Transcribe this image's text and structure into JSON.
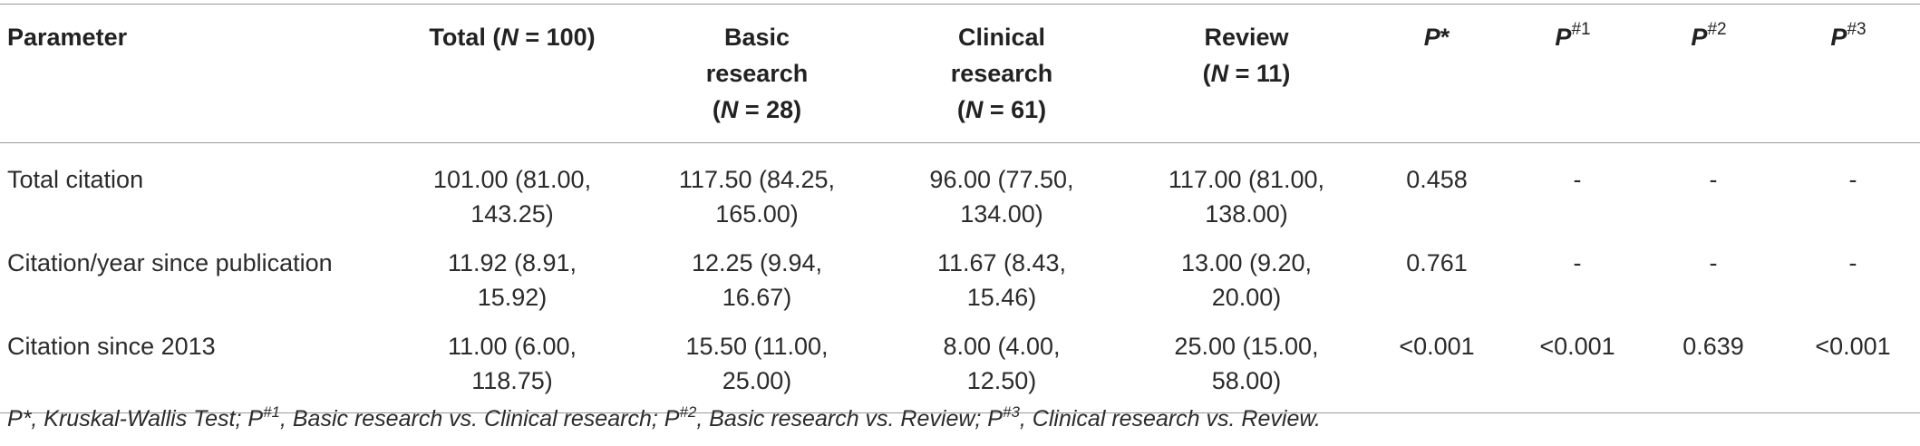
{
  "table": {
    "headers": {
      "parameter": "Parameter",
      "total": {
        "pre": "Total (",
        "n": "N",
        "post": " = 100)"
      },
      "basic": {
        "l1": "Basic",
        "l2": "research",
        "pre": "(",
        "n": "N",
        "post": " = 28)"
      },
      "clinical": {
        "l1": "Clinical",
        "l2": "research",
        "pre": "(",
        "n": "N",
        "post": " = 61)"
      },
      "review": {
        "l1": "Review",
        "pre": "(",
        "n": "N",
        "post": " = 11)"
      },
      "p": {
        "base": "P",
        "star": "*"
      },
      "p1": {
        "base": "P",
        "sup": "#1"
      },
      "p2": {
        "base": "P",
        "sup": "#2"
      },
      "p3": {
        "base": "P",
        "sup": "#3"
      }
    },
    "rows": [
      {
        "label": "Total citation",
        "total": [
          "101.00 (81.00,",
          "143.25)"
        ],
        "basic": [
          "117.50 (84.25,",
          "165.00)"
        ],
        "clinical": [
          "96.00 (77.50,",
          "134.00)"
        ],
        "review": [
          "117.00 (81.00,",
          "138.00)"
        ],
        "p": "0.458",
        "p1": "-",
        "p2": "-",
        "p3": "-"
      },
      {
        "label": "Citation/year since publication",
        "total": [
          "11.92 (8.91,",
          "15.92)"
        ],
        "basic": [
          "12.25 (9.94,",
          "16.67)"
        ],
        "clinical": [
          "11.67 (8.43,",
          "15.46)"
        ],
        "review": [
          "13.00 (9.20,",
          "20.00)"
        ],
        "p": "0.761",
        "p1": "-",
        "p2": "-",
        "p3": "-"
      },
      {
        "label": "Citation since 2013",
        "total": [
          "11.00 (6.00,",
          "118.75)"
        ],
        "basic": [
          "15.50 (11.00,",
          "25.00)"
        ],
        "clinical": [
          "8.00 (4.00,",
          "12.50)"
        ],
        "review": [
          "25.00 (15.00,",
          "58.00)"
        ],
        "p": "<0.001",
        "p1": "<0.001",
        "p2": "0.639",
        "p3": "<0.001"
      }
    ]
  },
  "footnote": {
    "p": "P",
    "star_text": "*, Kruskal-Wallis Test; ",
    "sup1": "#1",
    "text1": ", Basic research vs. Clinical research; ",
    "sup2": "#2",
    "text2": ", Basic research vs. Review; ",
    "sup3": "#3",
    "text3": ", Clinical research vs. Review."
  }
}
